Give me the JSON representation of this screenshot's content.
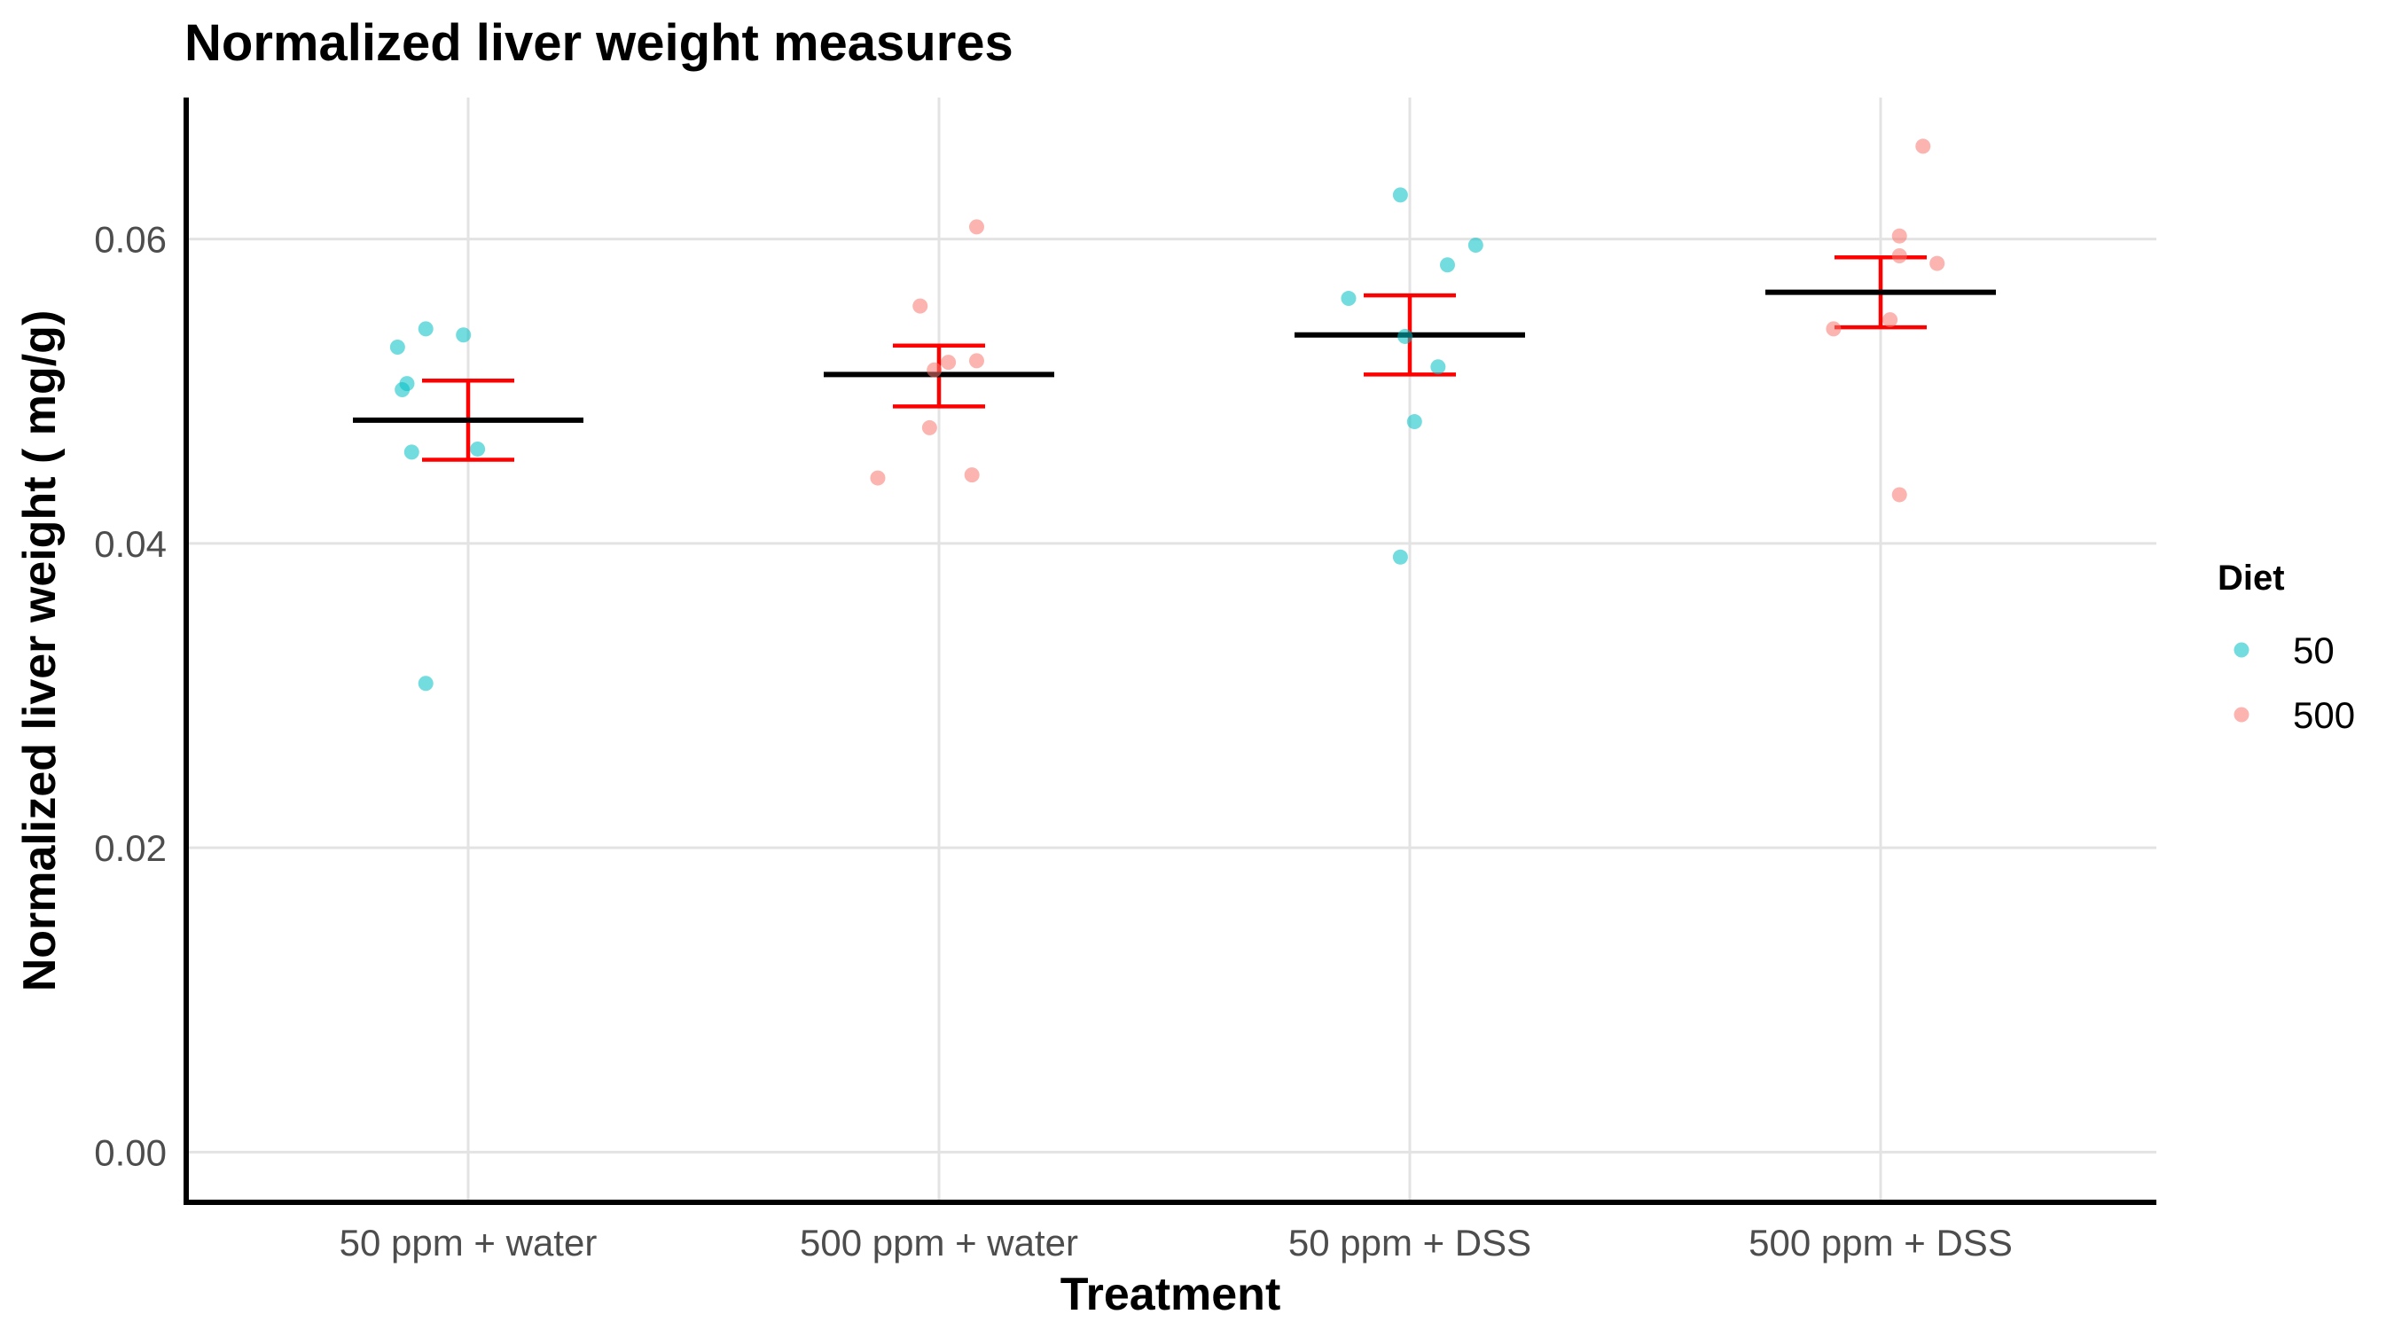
{
  "chart_data": {
    "type": "scatter",
    "title": "Normalized liver weight measures",
    "xlabel": "Treatment",
    "ylabel": "Normalized liver weight ( mg/g)",
    "categories": [
      "50 ppm + water",
      "500 ppm + water",
      "50 ppm + DSS",
      "500 ppm + DSS"
    ],
    "ylim": [
      -0.0033,
      0.0693
    ],
    "yticks": [
      0.0,
      0.02,
      0.04,
      0.06
    ],
    "ytick_labels": [
      "0.00",
      "0.02",
      "0.04",
      "0.06"
    ],
    "grid": true,
    "legend": {
      "title": "Diet",
      "position": "right",
      "entries": [
        {
          "label": "50",
          "color": "#00BFC4"
        },
        {
          "label": "500",
          "color": "#F8766D"
        }
      ]
    },
    "summary_color": "#000000",
    "errorbar_color": "#FF0000",
    "summaries": [
      {
        "category": "50 ppm + water",
        "mean": 0.0481,
        "lower": 0.0455,
        "upper": 0.0507
      },
      {
        "category": "500 ppm + water",
        "mean": 0.0511,
        "lower": 0.049,
        "upper": 0.053
      },
      {
        "category": "50 ppm + DSS",
        "mean": 0.0537,
        "lower": 0.0511,
        "upper": 0.0563
      },
      {
        "category": "500 ppm + DSS",
        "mean": 0.0565,
        "lower": 0.0542,
        "upper": 0.0588
      }
    ],
    "series": [
      {
        "name": "50",
        "color": "#00BFC4",
        "points": [
          {
            "category": "50 ppm + water",
            "jitter": -0.15,
            "y": 0.0529
          },
          {
            "category": "50 ppm + water",
            "jitter": -0.09,
            "y": 0.0541
          },
          {
            "category": "50 ppm + water",
            "jitter": -0.01,
            "y": 0.0537
          },
          {
            "category": "50 ppm + water",
            "jitter": -0.13,
            "y": 0.0505
          },
          {
            "category": "50 ppm + water",
            "jitter": -0.14,
            "y": 0.0501
          },
          {
            "category": "50 ppm + water",
            "jitter": -0.12,
            "y": 0.046
          },
          {
            "category": "50 ppm + water",
            "jitter": 0.02,
            "y": 0.0462
          },
          {
            "category": "50 ppm + water",
            "jitter": -0.09,
            "y": 0.0308
          },
          {
            "category": "50 ppm + DSS",
            "jitter": -0.02,
            "y": 0.0629
          },
          {
            "category": "50 ppm + DSS",
            "jitter": 0.14,
            "y": 0.0596
          },
          {
            "category": "50 ppm + DSS",
            "jitter": 0.08,
            "y": 0.0583
          },
          {
            "category": "50 ppm + DSS",
            "jitter": -0.13,
            "y": 0.0561
          },
          {
            "category": "50 ppm + DSS",
            "jitter": -0.01,
            "y": 0.0536
          },
          {
            "category": "50 ppm + DSS",
            "jitter": 0.06,
            "y": 0.0516
          },
          {
            "category": "50 ppm + DSS",
            "jitter": 0.01,
            "y": 0.048
          },
          {
            "category": "50 ppm + DSS",
            "jitter": -0.02,
            "y": 0.0391
          }
        ]
      },
      {
        "name": "500",
        "color": "#F8766D",
        "points": [
          {
            "category": "500 ppm + water",
            "jitter": 0.08,
            "y": 0.0608
          },
          {
            "category": "500 ppm + water",
            "jitter": -0.04,
            "y": 0.0556
          },
          {
            "category": "500 ppm + water",
            "jitter": 0.02,
            "y": 0.0519
          },
          {
            "category": "500 ppm + water",
            "jitter": 0.08,
            "y": 0.052
          },
          {
            "category": "500 ppm + water",
            "jitter": -0.01,
            "y": 0.0514
          },
          {
            "category": "500 ppm + water",
            "jitter": -0.02,
            "y": 0.0476
          },
          {
            "category": "500 ppm + water",
            "jitter": -0.13,
            "y": 0.0443
          },
          {
            "category": "500 ppm + water",
            "jitter": 0.07,
            "y": 0.0445
          },
          {
            "category": "500 ppm + DSS",
            "jitter": 0.09,
            "y": 0.0661
          },
          {
            "category": "500 ppm + DSS",
            "jitter": 0.04,
            "y": 0.0602
          },
          {
            "category": "500 ppm + DSS",
            "jitter": 0.04,
            "y": 0.0589
          },
          {
            "category": "500 ppm + DSS",
            "jitter": 0.12,
            "y": 0.0584
          },
          {
            "category": "500 ppm + DSS",
            "jitter": 0.02,
            "y": 0.0547
          },
          {
            "category": "500 ppm + DSS",
            "jitter": -0.1,
            "y": 0.0541
          },
          {
            "category": "500 ppm + DSS",
            "jitter": 0.04,
            "y": 0.0432
          }
        ]
      }
    ]
  }
}
